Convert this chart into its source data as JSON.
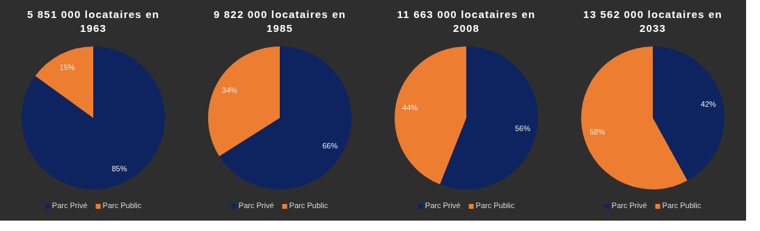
{
  "chart_data": [
    {
      "type": "pie",
      "title": "5 851 000 locataires en 1963",
      "categories": [
        "Parc Privé",
        "Parc Public"
      ],
      "values": [
        85,
        15
      ],
      "value_labels": [
        "85%",
        "15%"
      ],
      "colors": [
        "#0d2461",
        "#ed7d31"
      ],
      "legend": "bottom"
    },
    {
      "type": "pie",
      "title": "9 822 000 locataires en 1985",
      "categories": [
        "Parc Privé",
        "Parc Public"
      ],
      "values": [
        66,
        34
      ],
      "value_labels": [
        "66%",
        "34%"
      ],
      "colors": [
        "#0d2461",
        "#ed7d31"
      ],
      "legend": "bottom"
    },
    {
      "type": "pie",
      "title": "11 663 000 locataires en 2008",
      "categories": [
        "Parc Privé",
        "Parc Public"
      ],
      "values": [
        56,
        44
      ],
      "value_labels": [
        "56%",
        "44%"
      ],
      "colors": [
        "#0d2461",
        "#ed7d31"
      ],
      "legend": "bottom"
    },
    {
      "type": "pie",
      "title": "13 562 000 locataires en 2033",
      "categories": [
        "Parc Privé",
        "Parc Public"
      ],
      "values": [
        42,
        58
      ],
      "value_labels": [
        "42%",
        "58%"
      ],
      "colors": [
        "#0d2461",
        "#ed7d31"
      ],
      "legend": "bottom"
    }
  ]
}
